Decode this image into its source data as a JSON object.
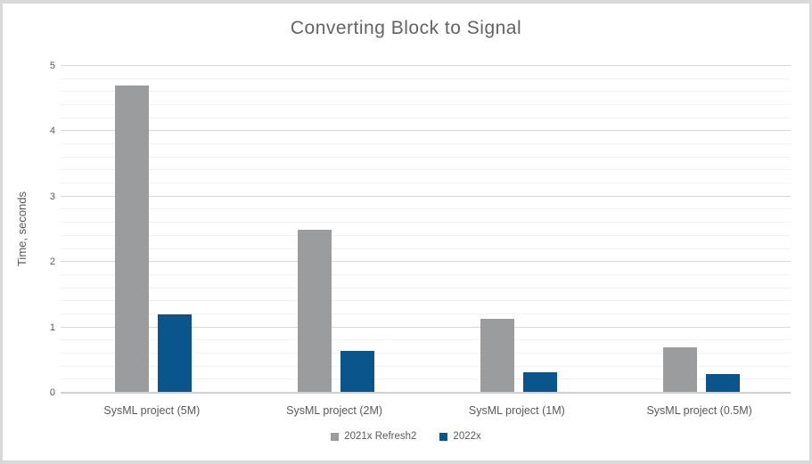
{
  "page": {
    "surround_color": "#d9d9d9",
    "chart_background": "#ffffff"
  },
  "chart_data": {
    "type": "bar",
    "title": "Converting Block to Signal",
    "xlabel": "",
    "ylabel": "Time, seconds",
    "categories": [
      "SysML project (5M)",
      "SysML project (2M)",
      "SysML project (1M)",
      "SysML project (0.5M)"
    ],
    "series": [
      {
        "name": "2021x Refresh2",
        "color": "#9b9c9e",
        "values": [
          4.7,
          2.5,
          1.13,
          0.7
        ]
      },
      {
        "name": "2022x",
        "color": "#0a568c",
        "values": [
          1.2,
          0.64,
          0.31,
          0.28
        ]
      }
    ],
    "ylim": [
      0,
      5
    ],
    "ytick_step": 1,
    "yminor_step": 0.2,
    "ytick_labels": [
      "0",
      "1",
      "2",
      "3",
      "4",
      "5"
    ],
    "grid": "horizontal major and minor, grid on",
    "legend_position": "bottom-center",
    "colors": {
      "major_gridline": "#d9d9d9",
      "minor_gridline": "#f2f2f2",
      "axis_line": "#d2d2d2",
      "title_text": "#636363",
      "label_text": "#595959"
    }
  }
}
